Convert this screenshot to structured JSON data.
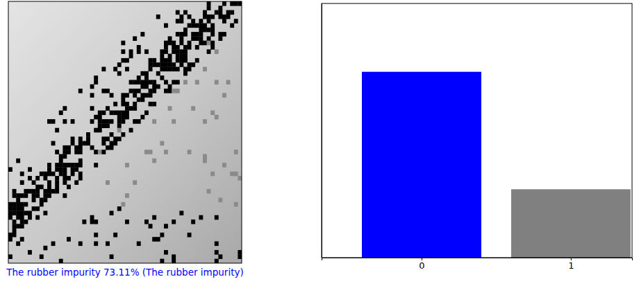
{
  "chart_data": {
    "type": "bar",
    "categories": [
      "0",
      "1"
    ],
    "values": [
      0.7311,
      0.2689
    ],
    "colors": [
      "#0000ff",
      "#808080"
    ],
    "ylim": [
      0,
      1
    ],
    "tick_labels": "x",
    "grid": false
  },
  "image": {
    "caption": "The rubber impurity 73.11% (The rubber impurity)",
    "color": "#0000ff"
  }
}
